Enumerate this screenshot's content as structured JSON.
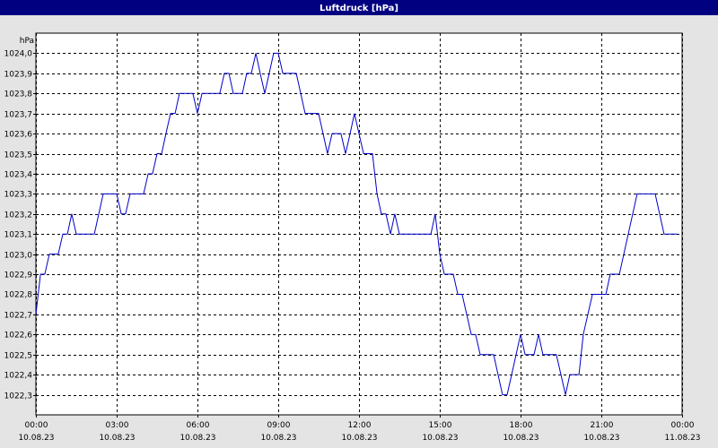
{
  "chart_data": {
    "type": "line",
    "title": "Luftdruck [hPa]",
    "y_label": "hPa",
    "series": [
      {
        "color": "#0000cc",
        "x": [
          0,
          0.17,
          0.33,
          0.5,
          0.83,
          1,
          1.17,
          1.33,
          1.5,
          2.17,
          2.5,
          3,
          3.17,
          3.33,
          3.5,
          4,
          4.17,
          4.33,
          4.5,
          4.67,
          4.83,
          5,
          5.17,
          5.33,
          5.83,
          6,
          6.17,
          6.83,
          7,
          7.17,
          7.33,
          7.67,
          7.83,
          8,
          8.17,
          8.33,
          8.5,
          8.83,
          9,
          9.17,
          9.67,
          10,
          10.5,
          10.83,
          11,
          11.33,
          11.5,
          11.67,
          11.83,
          12,
          12.17,
          12.5,
          12.67,
          12.83,
          13,
          13.17,
          13.33,
          13.5,
          14.67,
          14.83,
          15,
          15.17,
          15.5,
          15.67,
          15.83,
          16.17,
          16.33,
          16.5,
          17,
          17.33,
          17.5,
          17.67,
          18,
          18.17,
          18.5,
          18.67,
          18.83,
          19.33,
          19.67,
          19.83,
          20.17,
          20.33,
          20.67,
          21.17,
          21.33,
          21.67,
          22.33,
          23,
          23.33,
          23.83
        ],
        "values": [
          1022.7,
          1022.9,
          1022.9,
          1023.0,
          1023.0,
          1023.1,
          1023.1,
          1023.2,
          1023.1,
          1023.1,
          1023.3,
          1023.3,
          1023.2,
          1023.2,
          1023.3,
          1023.3,
          1023.4,
          1023.4,
          1023.5,
          1023.5,
          1023.6,
          1023.7,
          1023.7,
          1023.8,
          1023.8,
          1023.7,
          1023.8,
          1023.8,
          1023.9,
          1023.9,
          1023.8,
          1023.8,
          1023.9,
          1023.9,
          1024.0,
          1023.9,
          1023.8,
          1024.0,
          1024.0,
          1023.9,
          1023.9,
          1023.7,
          1023.7,
          1023.5,
          1023.6,
          1023.6,
          1023.5,
          1023.6,
          1023.7,
          1023.6,
          1023.5,
          1023.5,
          1023.3,
          1023.2,
          1023.2,
          1023.1,
          1023.2,
          1023.1,
          1023.1,
          1023.2,
          1023.0,
          1022.9,
          1022.9,
          1022.8,
          1022.8,
          1022.6,
          1022.6,
          1022.5,
          1022.5,
          1022.3,
          1022.3,
          1022.4,
          1022.6,
          1022.5,
          1022.5,
          1022.6,
          1022.5,
          1022.5,
          1022.3,
          1022.4,
          1022.4,
          1022.6,
          1022.8,
          1022.8,
          1022.9,
          1022.9,
          1023.3,
          1023.3,
          1023.1,
          1023.1
        ]
      }
    ],
    "xlim": [
      0,
      24
    ],
    "xticks": [
      {
        "value": 0,
        "label": [
          "00:00",
          "10.08.23"
        ]
      },
      {
        "value": 3,
        "label": [
          "03:00",
          "10.08.23"
        ]
      },
      {
        "value": 6,
        "label": [
          "06:00",
          "10.08.23"
        ]
      },
      {
        "value": 9,
        "label": [
          "09:00",
          "10.08.23"
        ]
      },
      {
        "value": 12,
        "label": [
          "12:00",
          "10.08.23"
        ]
      },
      {
        "value": 15,
        "label": [
          "15:00",
          "10.08.23"
        ]
      },
      {
        "value": 18,
        "label": [
          "18:00",
          "10.08.23"
        ]
      },
      {
        "value": 21,
        "label": [
          "21:00",
          "10.08.23"
        ]
      },
      {
        "value": 24,
        "label": [
          "00:00",
          "11.08.23"
        ]
      }
    ],
    "ylim": [
      1022.2,
      1024.1
    ],
    "yticks": [
      {
        "value": 1022.3,
        "label": "1022,3"
      },
      {
        "value": 1022.4,
        "label": "1022,4"
      },
      {
        "value": 1022.5,
        "label": "1022,5"
      },
      {
        "value": 1022.6,
        "label": "1022,6"
      },
      {
        "value": 1022.7,
        "label": "1022,7"
      },
      {
        "value": 1022.8,
        "label": "1022,8"
      },
      {
        "value": 1022.9,
        "label": "1022,9"
      },
      {
        "value": 1023.0,
        "label": "1023,0"
      },
      {
        "value": 1023.1,
        "label": "1023,1"
      },
      {
        "value": 1023.2,
        "label": "1023,2"
      },
      {
        "value": 1023.3,
        "label": "1023,3"
      },
      {
        "value": 1023.4,
        "label": "1023,4"
      },
      {
        "value": 1023.5,
        "label": "1023,5"
      },
      {
        "value": 1023.6,
        "label": "1023,6"
      },
      {
        "value": 1023.7,
        "label": "1023,7"
      },
      {
        "value": 1023.8,
        "label": "1023,8"
      },
      {
        "value": 1023.9,
        "label": "1023,9"
      },
      {
        "value": 1024.0,
        "label": "1024,0"
      }
    ],
    "grid": true
  }
}
